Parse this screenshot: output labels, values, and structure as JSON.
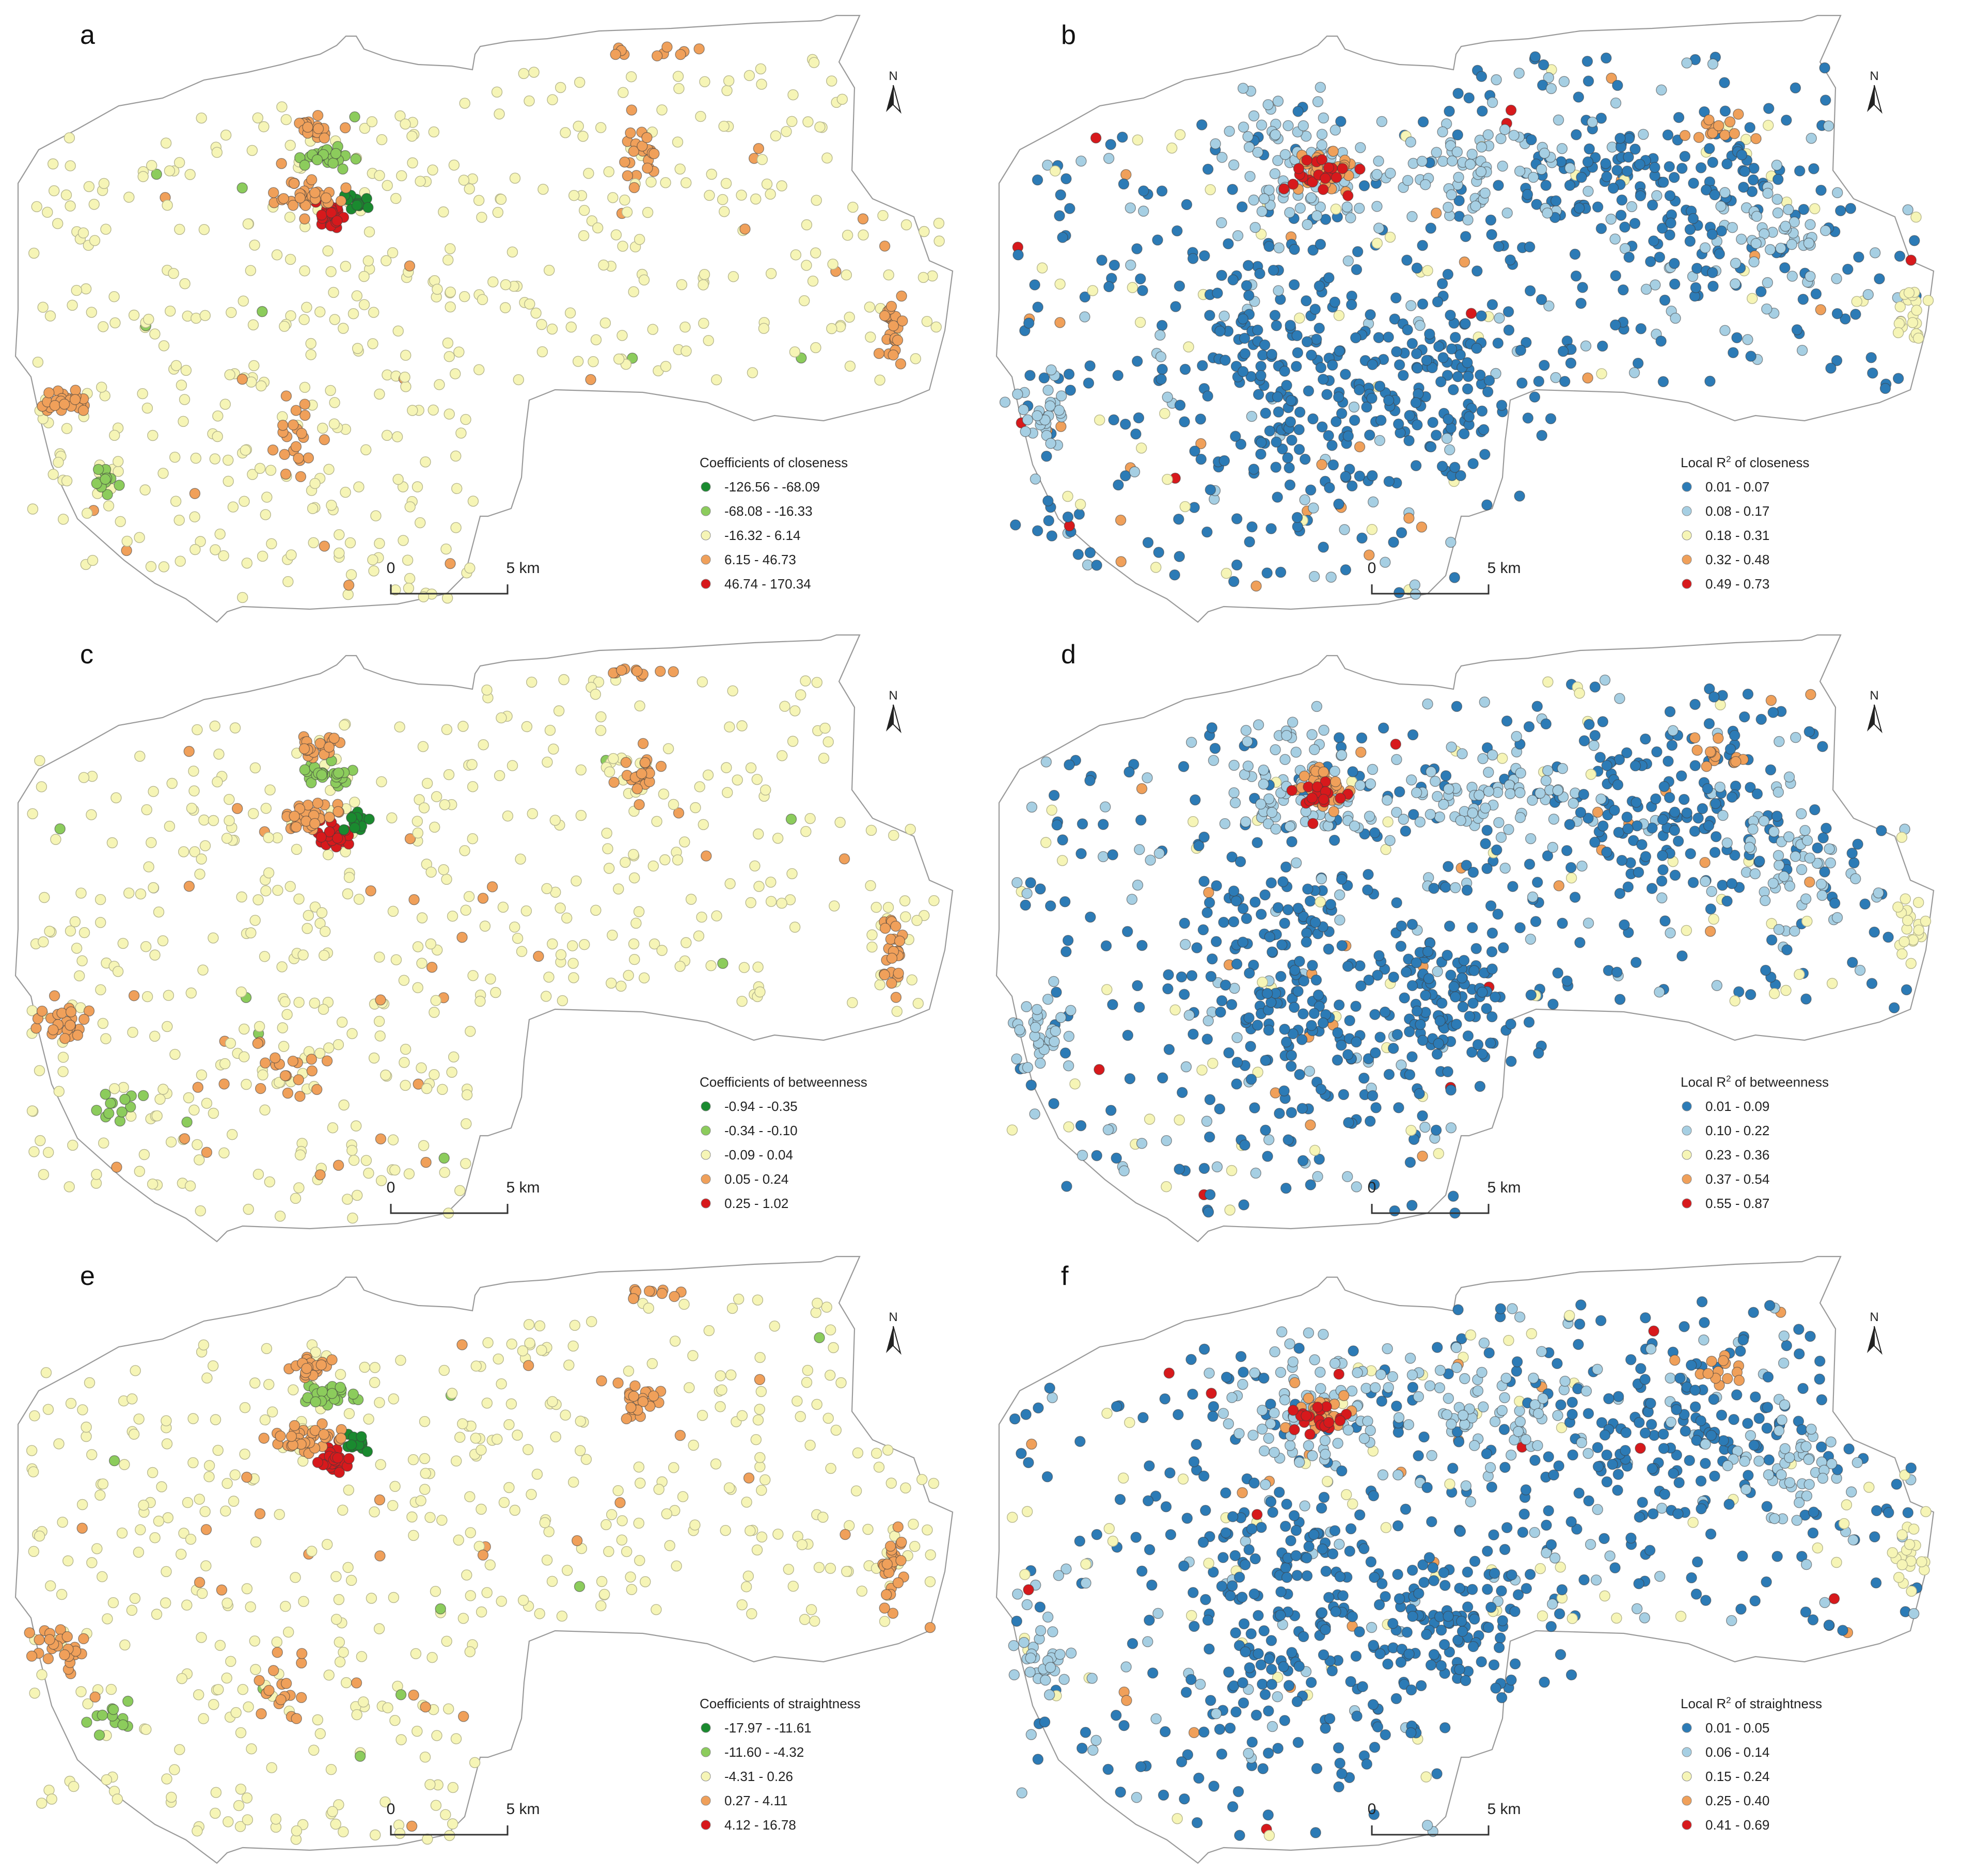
{
  "figure": {
    "scale_bar": {
      "start": "0",
      "end": "5 km"
    },
    "north_label": "N",
    "palettes": {
      "coefficient": [
        "#1a8a2f",
        "#8ccc5c",
        "#f6f5b6",
        "#f0a05a",
        "#d7191c"
      ],
      "local_r2": [
        "#2c7bb6",
        "#a6cfe3",
        "#f6f5b6",
        "#f0a05a",
        "#d7191c"
      ]
    }
  },
  "panels": [
    {
      "letter": "a",
      "kind": "coefficient",
      "metric": "closeness",
      "legend_title": "Coefficients of closeness",
      "classes": [
        "-126.56 - -68.09",
        "-68.08 - -16.33",
        "-16.32 - 6.14",
        "6.15 - 46.73",
        "46.74 - 170.34"
      ]
    },
    {
      "letter": "b",
      "kind": "local_r2",
      "metric": "closeness",
      "legend_title_prefix": "Local R",
      "legend_title_suffix": " of closeness",
      "classes": [
        "0.01 - 0.07",
        "0.08 - 0.17",
        "0.18 - 0.31",
        "0.32 - 0.48",
        "0.49 - 0.73"
      ]
    },
    {
      "letter": "c",
      "kind": "coefficient",
      "metric": "betweenness",
      "legend_title": "Coefficients of betweenness",
      "classes": [
        "-0.94 - -0.35",
        "-0.34 - -0.10",
        "-0.09 - 0.04",
        "0.05 - 0.24",
        "0.25 - 1.02"
      ]
    },
    {
      "letter": "d",
      "kind": "local_r2",
      "metric": "betweenness",
      "legend_title_prefix": "Local R",
      "legend_title_suffix": " of betweenness",
      "classes": [
        "0.01 - 0.09",
        "0.10 - 0.22",
        "0.23 - 0.36",
        "0.37 - 0.54",
        "0.55 - 0.87"
      ]
    },
    {
      "letter": "e",
      "kind": "coefficient",
      "metric": "straightness",
      "legend_title": "Coefficients of straightness",
      "classes": [
        "-17.97 - -11.61",
        "-11.60 - -4.32",
        "-4.31 - 0.26",
        "0.27 - 4.11",
        "4.12 - 16.78"
      ]
    },
    {
      "letter": "f",
      "kind": "local_r2",
      "metric": "straightness",
      "legend_title_prefix": "Local R",
      "legend_title_suffix": " of straightness",
      "classes": [
        "0.01 - 0.05",
        "0.06 - 0.14",
        "0.15 - 0.24",
        "0.25 - 0.40",
        "0.41 - 0.69"
      ]
    }
  ]
}
